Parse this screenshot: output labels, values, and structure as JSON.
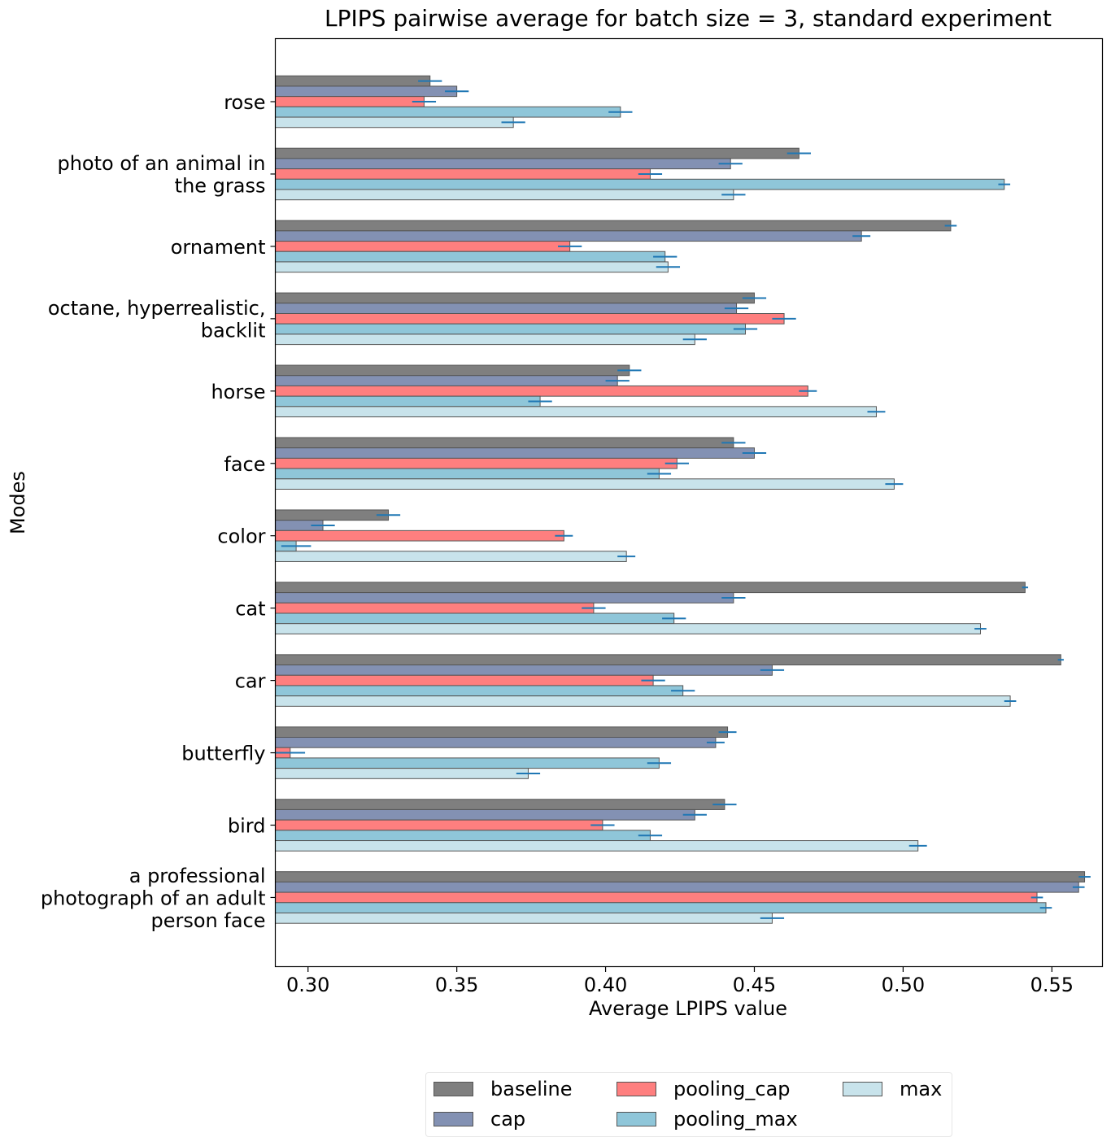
{
  "chart_data": {
    "type": "bar",
    "orientation": "horizontal",
    "title": "LPIPS pairwise average for batch size = 3, standard experiment",
    "xlabel": "Average LPIPS value",
    "ylabel": "Modes",
    "xlim": [
      0.289,
      0.567
    ],
    "xticks": [
      0.3,
      0.35,
      0.4,
      0.45,
      0.5,
      0.55
    ],
    "xtick_labels": [
      "0.30",
      "0.35",
      "0.40",
      "0.45",
      "0.50",
      "0.55"
    ],
    "categories": [
      "rose",
      "photo of an animal in the grass",
      "ornament",
      "octane, hyperrealistic, backlit",
      "horse",
      "face",
      "color",
      "cat",
      "car",
      "butterfly",
      "bird",
      "a professional photograph of an adult person face"
    ],
    "category_lines": [
      [
        "rose"
      ],
      [
        "photo of an animal in",
        "the grass"
      ],
      [
        "ornament"
      ],
      [
        "octane, hyperrealistic,",
        "backlit"
      ],
      [
        "horse"
      ],
      [
        "face"
      ],
      [
        "color"
      ],
      [
        "cat"
      ],
      [
        "car"
      ],
      [
        "butterfly"
      ],
      [
        "bird"
      ],
      [
        "a professional",
        "photograph of an adult",
        "person face"
      ]
    ],
    "series": [
      {
        "name": "baseline",
        "color": "#7f7f7f",
        "values": [
          0.341,
          0.465,
          0.516,
          0.45,
          0.408,
          0.443,
          0.327,
          0.541,
          0.553,
          0.441,
          0.44,
          0.561
        ],
        "errors": [
          0.004,
          0.004,
          0.002,
          0.004,
          0.004,
          0.004,
          0.004,
          0.001,
          0.001,
          0.003,
          0.004,
          0.002
        ]
      },
      {
        "name": "cap",
        "color": "#8391b3",
        "values": [
          0.35,
          0.442,
          0.486,
          0.444,
          0.404,
          0.45,
          0.305,
          0.443,
          0.456,
          0.437,
          0.43,
          0.559
        ],
        "errors": [
          0.004,
          0.004,
          0.003,
          0.004,
          0.004,
          0.004,
          0.004,
          0.004,
          0.004,
          0.003,
          0.004,
          0.002
        ]
      },
      {
        "name": "pooling_cap",
        "color": "#fe7f7f",
        "values": [
          0.339,
          0.415,
          0.388,
          0.46,
          0.468,
          0.424,
          0.386,
          0.396,
          0.416,
          0.294,
          0.399,
          0.545
        ],
        "errors": [
          0.004,
          0.004,
          0.004,
          0.004,
          0.003,
          0.004,
          0.003,
          0.004,
          0.004,
          0.005,
          0.004,
          0.002
        ]
      },
      {
        "name": "pooling_max",
        "color": "#8fc6d9",
        "values": [
          0.405,
          0.534,
          0.42,
          0.447,
          0.378,
          0.418,
          0.296,
          0.423,
          0.426,
          0.418,
          0.415,
          0.548
        ],
        "errors": [
          0.004,
          0.002,
          0.004,
          0.004,
          0.004,
          0.004,
          0.005,
          0.004,
          0.004,
          0.004,
          0.004,
          0.002
        ]
      },
      {
        "name": "max",
        "color": "#c8e3eb",
        "values": [
          0.369,
          0.443,
          0.421,
          0.43,
          0.491,
          0.497,
          0.407,
          0.526,
          0.536,
          0.374,
          0.505,
          0.456
        ],
        "errors": [
          0.004,
          0.004,
          0.004,
          0.004,
          0.003,
          0.003,
          0.003,
          0.002,
          0.002,
          0.004,
          0.003,
          0.004
        ]
      }
    ],
    "error_bar_color": "#1f77b4",
    "legend_position": "bottom-center"
  }
}
